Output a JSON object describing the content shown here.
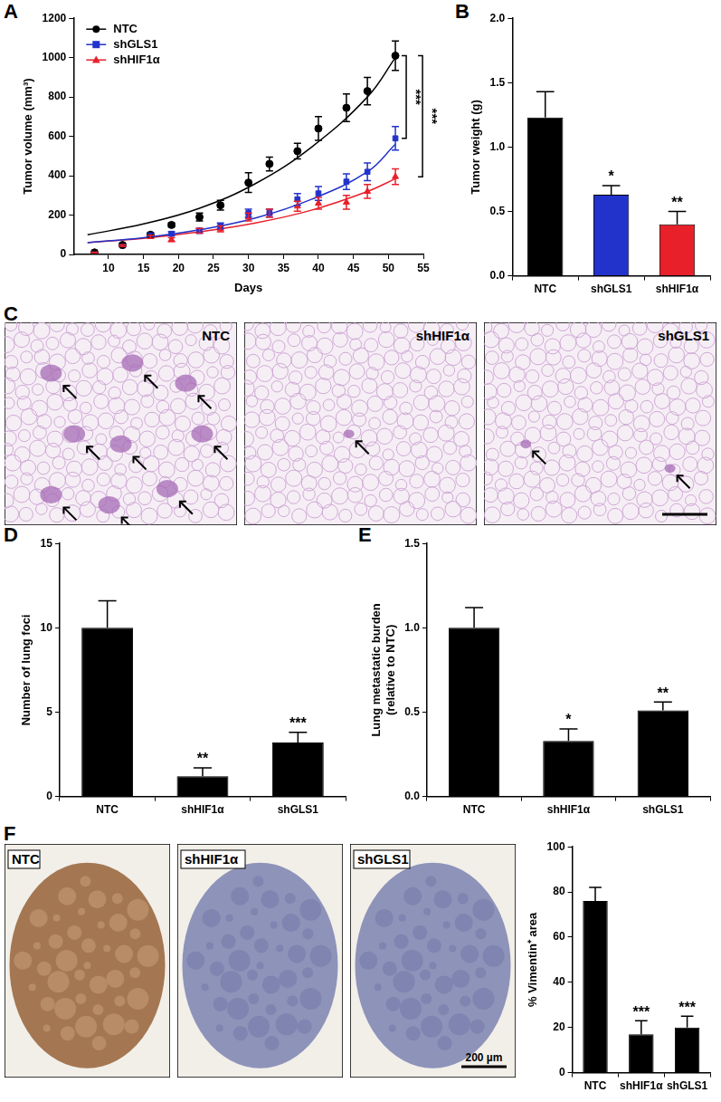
{
  "chart_data": [
    {
      "panel": "A",
      "type": "line",
      "x_label": "Days",
      "y_label": "Tumor volume (mm³)",
      "xlim": [
        5,
        55
      ],
      "xticks": [
        10,
        15,
        20,
        25,
        30,
        35,
        40,
        45,
        50,
        55
      ],
      "ylim": [
        0,
        1200
      ],
      "yticks": [
        0,
        200,
        400,
        600,
        800,
        1000,
        1200
      ],
      "grid": false,
      "legend": "upper left",
      "x": [
        8,
        12,
        16,
        19,
        23,
        26,
        30,
        33,
        37,
        40,
        44,
        47,
        51
      ],
      "fit_x": [
        7,
        15,
        23,
        31,
        39,
        47,
        51
      ],
      "series": [
        {
          "name": "NTC",
          "color": "#000000",
          "marker": "circle",
          "values": [
            10,
            48,
            100,
            150,
            190,
            250,
            365,
            460,
            525,
            640,
            745,
            830,
            1010
          ],
          "errors": [
            2,
            8,
            10,
            10,
            20,
            25,
            50,
            35,
            40,
            60,
            70,
            70,
            75
          ],
          "fit": [
            100,
            155,
            235,
            360,
            545,
            800,
            1000
          ]
        },
        {
          "name": "shGLS1",
          "color": "#2233cc",
          "marker": "square",
          "values": [
            10,
            45,
            100,
            105,
            120,
            145,
            210,
            210,
            280,
            310,
            370,
            420,
            590
          ],
          "errors": [
            2,
            5,
            8,
            10,
            12,
            15,
            20,
            20,
            30,
            35,
            40,
            45,
            60
          ],
          "fit": [
            60,
            85,
            125,
            185,
            280,
            420,
            560
          ]
        },
        {
          "name": "shHIF1α",
          "color": "#e8202a",
          "marker": "triangle",
          "values": [
            10,
            45,
            90,
            75,
            120,
            130,
            190,
            210,
            245,
            260,
            265,
            320,
            395
          ],
          "errors": [
            2,
            5,
            8,
            10,
            12,
            15,
            20,
            20,
            25,
            30,
            35,
            35,
            40
          ],
          "fit": [
            60,
            82,
            115,
            160,
            225,
            320,
            385
          ]
        }
      ],
      "annotations": [
        {
          "text": "***",
          "from": "NTC",
          "to": "shGLS1"
        },
        {
          "text": "***",
          "from": "NTC",
          "to": "shHIF1α"
        }
      ]
    },
    {
      "panel": "B",
      "type": "bar",
      "y_label": "Tumor weight (g)",
      "categories": [
        "NTC",
        "shGLS1",
        "shHIF1α"
      ],
      "values": [
        1.23,
        0.63,
        0.4
      ],
      "errors": [
        0.2,
        0.07,
        0.1
      ],
      "significance": [
        null,
        "*",
        "**"
      ],
      "colors": [
        "#000000",
        "#2233cc",
        "#e8202a"
      ],
      "ylim": [
        0,
        2
      ],
      "yticks": [
        {
          "value": 0,
          "label": "0.0"
        },
        {
          "value": 0.5,
          "label": "0.5"
        },
        {
          "value": 1,
          "label": "1.0"
        },
        {
          "value": 1.5,
          "label": "1.5"
        },
        {
          "value": 2,
          "label": "2.0"
        }
      ],
      "grid": false
    },
    {
      "panel": "D",
      "type": "bar",
      "y_label": "Number of lung foci",
      "categories": [
        "NTC",
        "shHIF1α",
        "shGLS1"
      ],
      "values": [
        10,
        1.2,
        3.2
      ],
      "errors": [
        1.6,
        0.5,
        0.6
      ],
      "significance": [
        null,
        "**",
        "***"
      ],
      "color": "#000000",
      "ylim": [
        0,
        15
      ],
      "yticks": [
        0,
        5,
        10,
        15
      ],
      "grid": false
    },
    {
      "panel": "E",
      "type": "bar",
      "y_label": [
        "Lung metastatic burden",
        "(relative to NTC)"
      ],
      "categories": [
        "NTC",
        "shHIF1α",
        "shGLS1"
      ],
      "values": [
        1.0,
        0.33,
        0.51
      ],
      "errors": [
        0.12,
        0.07,
        0.05
      ],
      "significance": [
        null,
        "*",
        "**"
      ],
      "color": "#000000",
      "ylim": [
        0,
        1.5
      ],
      "yticks": [
        {
          "value": 0,
          "label": "0.0"
        },
        {
          "value": 0.5,
          "label": "0.5"
        },
        {
          "value": 1,
          "label": "1.0"
        },
        {
          "value": 1.5,
          "label": "1.5"
        }
      ],
      "grid": false
    },
    {
      "panel": "F",
      "type": "bar",
      "y_label": "% Vimentin⁺ area",
      "categories": [
        "NTC",
        "shHIF1α",
        "shGLS1"
      ],
      "values": [
        76,
        17,
        20
      ],
      "errors": [
        6,
        6,
        5
      ],
      "significance": [
        null,
        "***",
        "***"
      ],
      "color": "#000000",
      "ylim": [
        0,
        100
      ],
      "yticks": [
        0,
        20,
        40,
        60,
        80,
        100
      ],
      "grid": false
    }
  ],
  "image_panels": [
    {
      "panel": "C",
      "images": [
        {
          "label": "NTC"
        },
        {
          "label": "shHIF1α"
        },
        {
          "label": "shGLS1"
        }
      ]
    },
    {
      "panel": "F",
      "images": [
        {
          "label": "NTC"
        },
        {
          "label": "shHIF1α"
        },
        {
          "label": "shGLS1",
          "scale_bar": "200 µm"
        }
      ]
    }
  ]
}
